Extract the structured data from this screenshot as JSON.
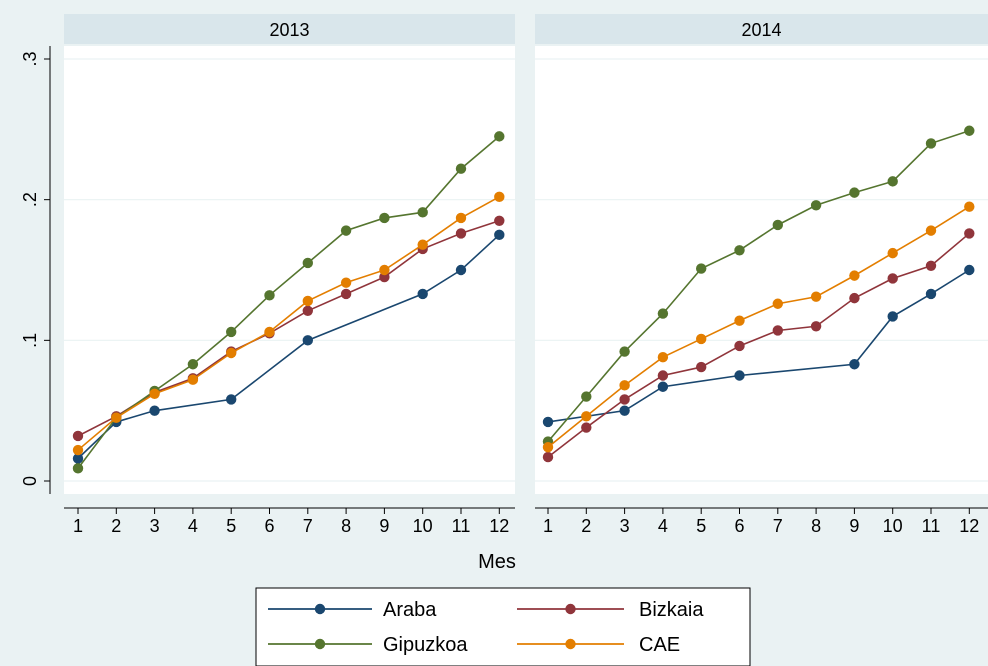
{
  "chart_data": {
    "type": "line",
    "x": [
      1,
      2,
      3,
      4,
      5,
      6,
      7,
      8,
      9,
      10,
      11,
      12
    ],
    "xlabel": "Mes",
    "ylabel": "",
    "ylim": [
      0,
      0.3
    ],
    "yticks": [
      0,
      0.1,
      0.2,
      0.3
    ],
    "ytick_labels": [
      "0",
      ".1",
      ".2",
      ".3"
    ],
    "xticks": [
      1,
      2,
      3,
      4,
      5,
      6,
      7,
      8,
      9,
      10,
      11,
      12
    ],
    "xtick_labels": [
      "1",
      "2",
      "3",
      "4",
      "5",
      "6",
      "7",
      "8",
      "9",
      "10",
      "11",
      "12"
    ],
    "grid": true,
    "legend_position": "bottom",
    "colors": {
      "Araba": "#1a476f",
      "Bizkaia": "#90353b",
      "Gipuzkoa": "#55752f",
      "CAE": "#e37e00"
    },
    "panels": [
      {
        "title": "2013",
        "series": [
          {
            "name": "Araba",
            "values": [
              0.016,
              0.042,
              0.05,
              null,
              0.058,
              null,
              0.1,
              null,
              null,
              0.133,
              0.15,
              0.175
            ]
          },
          {
            "name": "Bizkaia",
            "values": [
              0.032,
              0.046,
              0.063,
              0.073,
              0.092,
              0.105,
              0.121,
              0.133,
              0.145,
              0.165,
              0.176,
              0.185
            ]
          },
          {
            "name": "Gipuzkoa",
            "values": [
              0.009,
              0.045,
              0.064,
              0.083,
              0.106,
              0.132,
              0.155,
              0.178,
              0.187,
              0.191,
              0.222,
              0.245
            ]
          },
          {
            "name": "CAE",
            "values": [
              0.022,
              0.045,
              0.062,
              0.072,
              0.091,
              0.106,
              0.128,
              0.141,
              0.15,
              0.168,
              0.187,
              0.202
            ]
          }
        ]
      },
      {
        "title": "2014",
        "series": [
          {
            "name": "Araba",
            "values": [
              0.042,
              null,
              0.05,
              0.067,
              null,
              0.075,
              null,
              null,
              0.083,
              0.117,
              0.133,
              0.15
            ]
          },
          {
            "name": "Bizkaia",
            "values": [
              0.017,
              0.038,
              0.058,
              0.075,
              0.081,
              0.096,
              0.107,
              0.11,
              0.13,
              0.144,
              0.153,
              0.176
            ]
          },
          {
            "name": "Gipuzkoa",
            "values": [
              0.028,
              0.06,
              0.092,
              0.119,
              0.151,
              0.164,
              0.182,
              0.196,
              0.205,
              0.213,
              0.24,
              0.249
            ]
          },
          {
            "name": "CAE",
            "values": [
              0.024,
              0.046,
              0.068,
              0.088,
              0.101,
              0.114,
              0.126,
              0.131,
              0.146,
              0.162,
              0.178,
              0.195
            ]
          }
        ]
      }
    ],
    "legend": [
      "Araba",
      "Bizkaia",
      "Gipuzkoa",
      "CAE"
    ]
  }
}
